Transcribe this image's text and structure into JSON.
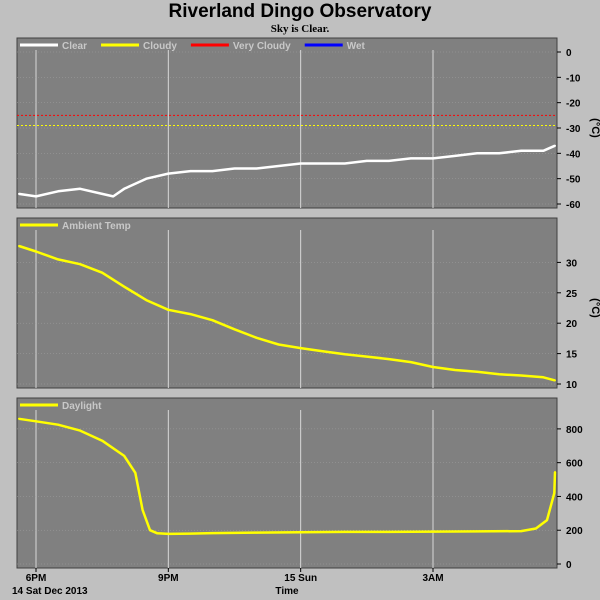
{
  "title": "Riverland Dingo Observatory",
  "subtitle": "Sky is Clear.",
  "colors": {
    "background": "#c0c0c0",
    "plot_background": "#808080",
    "clear": "#ffffff",
    "cloudy": "#ffff00",
    "very_cloudy": "#ff0000",
    "wet": "#0000ff"
  },
  "x_axis": {
    "label": "Time",
    "ticks": [
      "6PM",
      "9PM",
      "15 Sun",
      "3AM"
    ],
    "date_label": "14 Sat Dec 2013"
  },
  "chart_data": [
    {
      "type": "line",
      "unit": "(°C)",
      "ylim": [
        -60,
        0
      ],
      "yticks": [
        0,
        -10,
        -20,
        -30,
        -40,
        -50,
        -60
      ],
      "legend": [
        {
          "name": "Clear",
          "color": "#ffffff"
        },
        {
          "name": "Cloudy",
          "color": "#ffff00"
        },
        {
          "name": "Very Cloudy",
          "color": "#ff0000"
        },
        {
          "name": "Wet",
          "color": "#0000ff"
        }
      ],
      "thresholds": [
        {
          "value": -25,
          "color": "#ff0000"
        },
        {
          "value": -29,
          "color": "#ffff00"
        }
      ],
      "x": [
        "17:30",
        "18:00",
        "18:30",
        "19:00",
        "19:30",
        "19:45",
        "20:00",
        "20:30",
        "21:00",
        "21:30",
        "22:00",
        "22:30",
        "23:00",
        "23:30",
        "00:00",
        "00:30",
        "01:00",
        "01:30",
        "02:00",
        "02:30",
        "03:00",
        "03:30",
        "04:00",
        "04:30",
        "05:00",
        "05:30",
        "05:50"
      ],
      "series": [
        {
          "name": "Clear",
          "color": "#ffffff",
          "values": [
            -56,
            -57,
            -55,
            -54,
            -56,
            -57,
            -54,
            -50,
            -48,
            -47,
            -47,
            -46,
            -46,
            -45,
            -44,
            -44,
            -44,
            -43,
            -43,
            -42,
            -42,
            -41,
            -40,
            -40,
            -39,
            -39,
            -37
          ]
        }
      ],
      "grid": true
    },
    {
      "type": "line",
      "unit": "(°C)",
      "ylim": [
        10,
        35
      ],
      "yticks": [
        10,
        15,
        20,
        25,
        30
      ],
      "legend": [
        {
          "name": "Ambient Temp",
          "color": "#ffff00"
        }
      ],
      "x": [
        "17:30",
        "18:00",
        "18:30",
        "19:00",
        "19:30",
        "20:00",
        "20:30",
        "21:00",
        "21:30",
        "22:00",
        "22:30",
        "23:00",
        "23:30",
        "00:00",
        "00:30",
        "01:00",
        "01:30",
        "02:00",
        "02:30",
        "03:00",
        "03:30",
        "04:00",
        "04:30",
        "05:00",
        "05:30",
        "05:50"
      ],
      "series": [
        {
          "name": "Ambient Temp",
          "color": "#ffff00",
          "values": [
            32.7,
            31.8,
            30.5,
            29.7,
            28.3,
            26.0,
            23.8,
            22.2,
            21.5,
            20.5,
            19.0,
            17.6,
            16.5,
            15.9,
            15.4,
            14.9,
            14.5,
            14.1,
            13.6,
            12.8,
            12.3,
            12.0,
            11.6,
            11.4,
            11.1,
            10.6
          ]
        }
      ],
      "grid": true
    },
    {
      "type": "line",
      "unit": "",
      "ylim": [
        0,
        900
      ],
      "yticks": [
        0,
        200,
        400,
        600,
        800
      ],
      "legend": [
        {
          "name": "Daylight",
          "color": "#ffff00"
        }
      ],
      "x": [
        "17:30",
        "18:00",
        "18:30",
        "19:00",
        "19:30",
        "20:00",
        "20:15",
        "20:25",
        "20:35",
        "20:45",
        "21:00",
        "21:30",
        "22:00",
        "23:00",
        "00:00",
        "01:00",
        "02:00",
        "03:00",
        "04:00",
        "05:00",
        "05:20",
        "05:35",
        "05:45",
        "05:50"
      ],
      "series": [
        {
          "name": "Daylight",
          "color": "#ffff00",
          "values": [
            860,
            845,
            825,
            790,
            730,
            640,
            540,
            320,
            200,
            182,
            178,
            180,
            183,
            186,
            188,
            190,
            190,
            192,
            193,
            195,
            210,
            260,
            420,
            545
          ]
        }
      ],
      "grid": true
    }
  ]
}
